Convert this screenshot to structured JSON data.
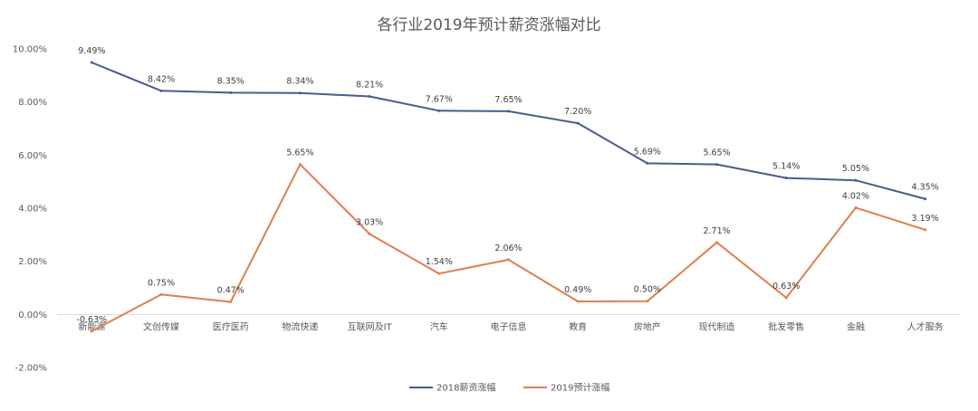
{
  "chart_data": {
    "type": "line",
    "title": "各行业2019年预计薪资涨幅对比",
    "xlabel": "",
    "ylabel": "",
    "categories": [
      "新能源",
      "文创传媒",
      "医疗医药",
      "物流快递",
      "互联网及IT",
      "汽车",
      "电子信息",
      "教育",
      "房地产",
      "现代制造",
      "批发零售",
      "金融",
      "人才服务"
    ],
    "ylim": [
      -2,
      10
    ],
    "yticks": [
      -2,
      0,
      2,
      4,
      6,
      8,
      10
    ],
    "ytick_labels": [
      "-2.00%",
      "0.00%",
      "2.00%",
      "4.00%",
      "6.00%",
      "8.00%",
      "10.00%"
    ],
    "grid": false,
    "legend_position": "bottom",
    "series": [
      {
        "name": "2018薪资涨幅",
        "color": "#4A5B8C",
        "values": [
          9.49,
          8.42,
          8.35,
          8.34,
          8.21,
          7.67,
          7.65,
          7.2,
          5.69,
          5.65,
          5.14,
          5.05,
          4.35
        ],
        "labels": [
          "9.49%",
          "8.42%",
          "8.35%",
          "8.34%",
          "8.21%",
          "7.67%",
          "7.65%",
          "7.20%",
          "5.69%",
          "5.65%",
          "5.14%",
          "5.05%",
          "4.35%"
        ]
      },
      {
        "name": "2019预计涨幅",
        "color": "#DE7F4E",
        "values": [
          -0.63,
          0.75,
          0.47,
          5.65,
          3.03,
          1.54,
          2.06,
          0.49,
          0.5,
          2.71,
          0.63,
          4.02,
          3.19
        ],
        "labels": [
          "-0.63%",
          "0.75%",
          "0.47%",
          "5.65%",
          "3.03%",
          "1.54%",
          "2.06%",
          "0.49%",
          "0.50%",
          "2.71%",
          "0.63%",
          "4.02%",
          "3.19%"
        ]
      }
    ]
  }
}
